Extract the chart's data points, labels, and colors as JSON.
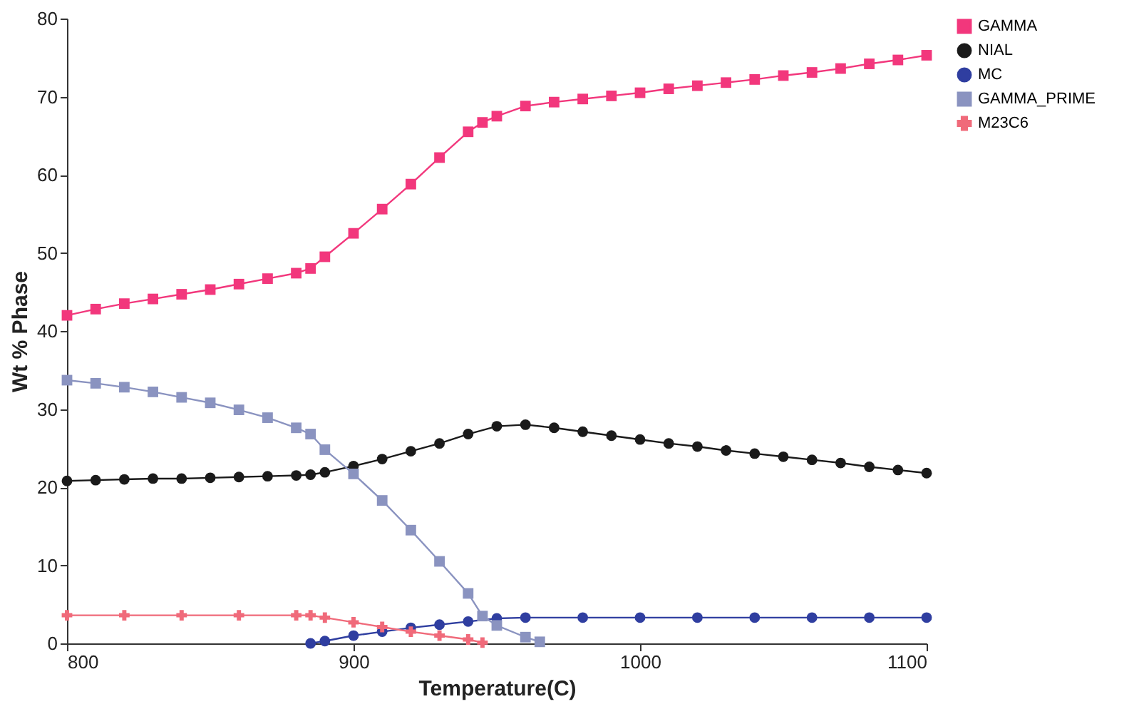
{
  "chart_data": {
    "type": "line",
    "xlabel": "Temperature(C)",
    "ylabel": "Wt % Phase",
    "xlim": [
      800,
      1100
    ],
    "xticks": [
      800,
      900,
      1000,
      1100
    ],
    "ylim": [
      0,
      80
    ],
    "yticks": [
      0,
      10,
      20,
      30,
      40,
      50,
      60,
      70,
      80
    ],
    "grid": false,
    "legend": "right",
    "series": [
      {
        "name": "GAMMA",
        "color": "#f2377c",
        "marker": "square",
        "x": [
          800,
          810,
          820,
          830,
          840,
          850,
          860,
          870,
          880,
          885,
          890,
          900,
          910,
          920,
          930,
          940,
          945,
          950,
          960,
          970,
          980,
          990,
          1000,
          1010,
          1020,
          1030,
          1040,
          1050,
          1060,
          1070,
          1080,
          1090,
          1100
        ],
        "values": [
          42,
          42.8,
          43.5,
          44.1,
          44.7,
          45.3,
          46,
          46.7,
          47.4,
          48,
          49.5,
          52.5,
          55.6,
          58.8,
          62.2,
          65.5,
          66.7,
          67.5,
          68.8,
          69.3,
          69.7,
          70.1,
          70.5,
          71,
          71.4,
          71.8,
          72.2,
          72.7,
          73.1,
          73.6,
          74.2,
          74.7,
          75.3
        ]
      },
      {
        "name": "NIAL",
        "color": "#1a1a1a",
        "marker": "circle",
        "x": [
          800,
          810,
          820,
          830,
          840,
          850,
          860,
          870,
          880,
          885,
          890,
          900,
          910,
          920,
          930,
          940,
          950,
          960,
          970,
          980,
          990,
          1000,
          1010,
          1020,
          1030,
          1040,
          1050,
          1060,
          1070,
          1080,
          1090,
          1100
        ],
        "values": [
          20.8,
          20.9,
          21,
          21.1,
          21.1,
          21.2,
          21.3,
          21.4,
          21.5,
          21.6,
          21.9,
          22.7,
          23.6,
          24.6,
          25.6,
          26.8,
          27.8,
          28,
          27.6,
          27.1,
          26.6,
          26.1,
          25.6,
          25.2,
          24.7,
          24.3,
          23.9,
          23.5,
          23.1,
          22.6,
          22.2,
          21.8
        ]
      },
      {
        "name": "MC",
        "color": "#2f3ea0",
        "marker": "circle",
        "x": [
          885,
          890,
          900,
          910,
          920,
          930,
          940,
          950,
          960,
          980,
          1000,
          1020,
          1040,
          1060,
          1080,
          1100
        ],
        "values": [
          0,
          0.3,
          1,
          1.5,
          2,
          2.4,
          2.8,
          3.2,
          3.3,
          3.3,
          3.3,
          3.3,
          3.3,
          3.3,
          3.3,
          3.3
        ]
      },
      {
        "name": "GAMMA_PRIME",
        "color": "#8a93c0",
        "marker": "square",
        "x": [
          800,
          810,
          820,
          830,
          840,
          850,
          860,
          870,
          880,
          885,
          890,
          900,
          910,
          920,
          930,
          940,
          945,
          950,
          960,
          965
        ],
        "values": [
          33.7,
          33.3,
          32.8,
          32.2,
          31.5,
          30.8,
          29.9,
          28.9,
          27.6,
          26.8,
          24.8,
          21.7,
          18.3,
          14.5,
          10.5,
          6.4,
          3.5,
          2.3,
          0.8,
          0.2
        ]
      },
      {
        "name": "M23C6",
        "color": "#f06a7a",
        "marker": "cross",
        "x": [
          800,
          820,
          840,
          860,
          880,
          885,
          890,
          900,
          910,
          920,
          930,
          940,
          945
        ],
        "values": [
          3.6,
          3.6,
          3.6,
          3.6,
          3.6,
          3.6,
          3.3,
          2.7,
          2.1,
          1.5,
          1,
          0.5,
          0.1
        ]
      }
    ]
  }
}
